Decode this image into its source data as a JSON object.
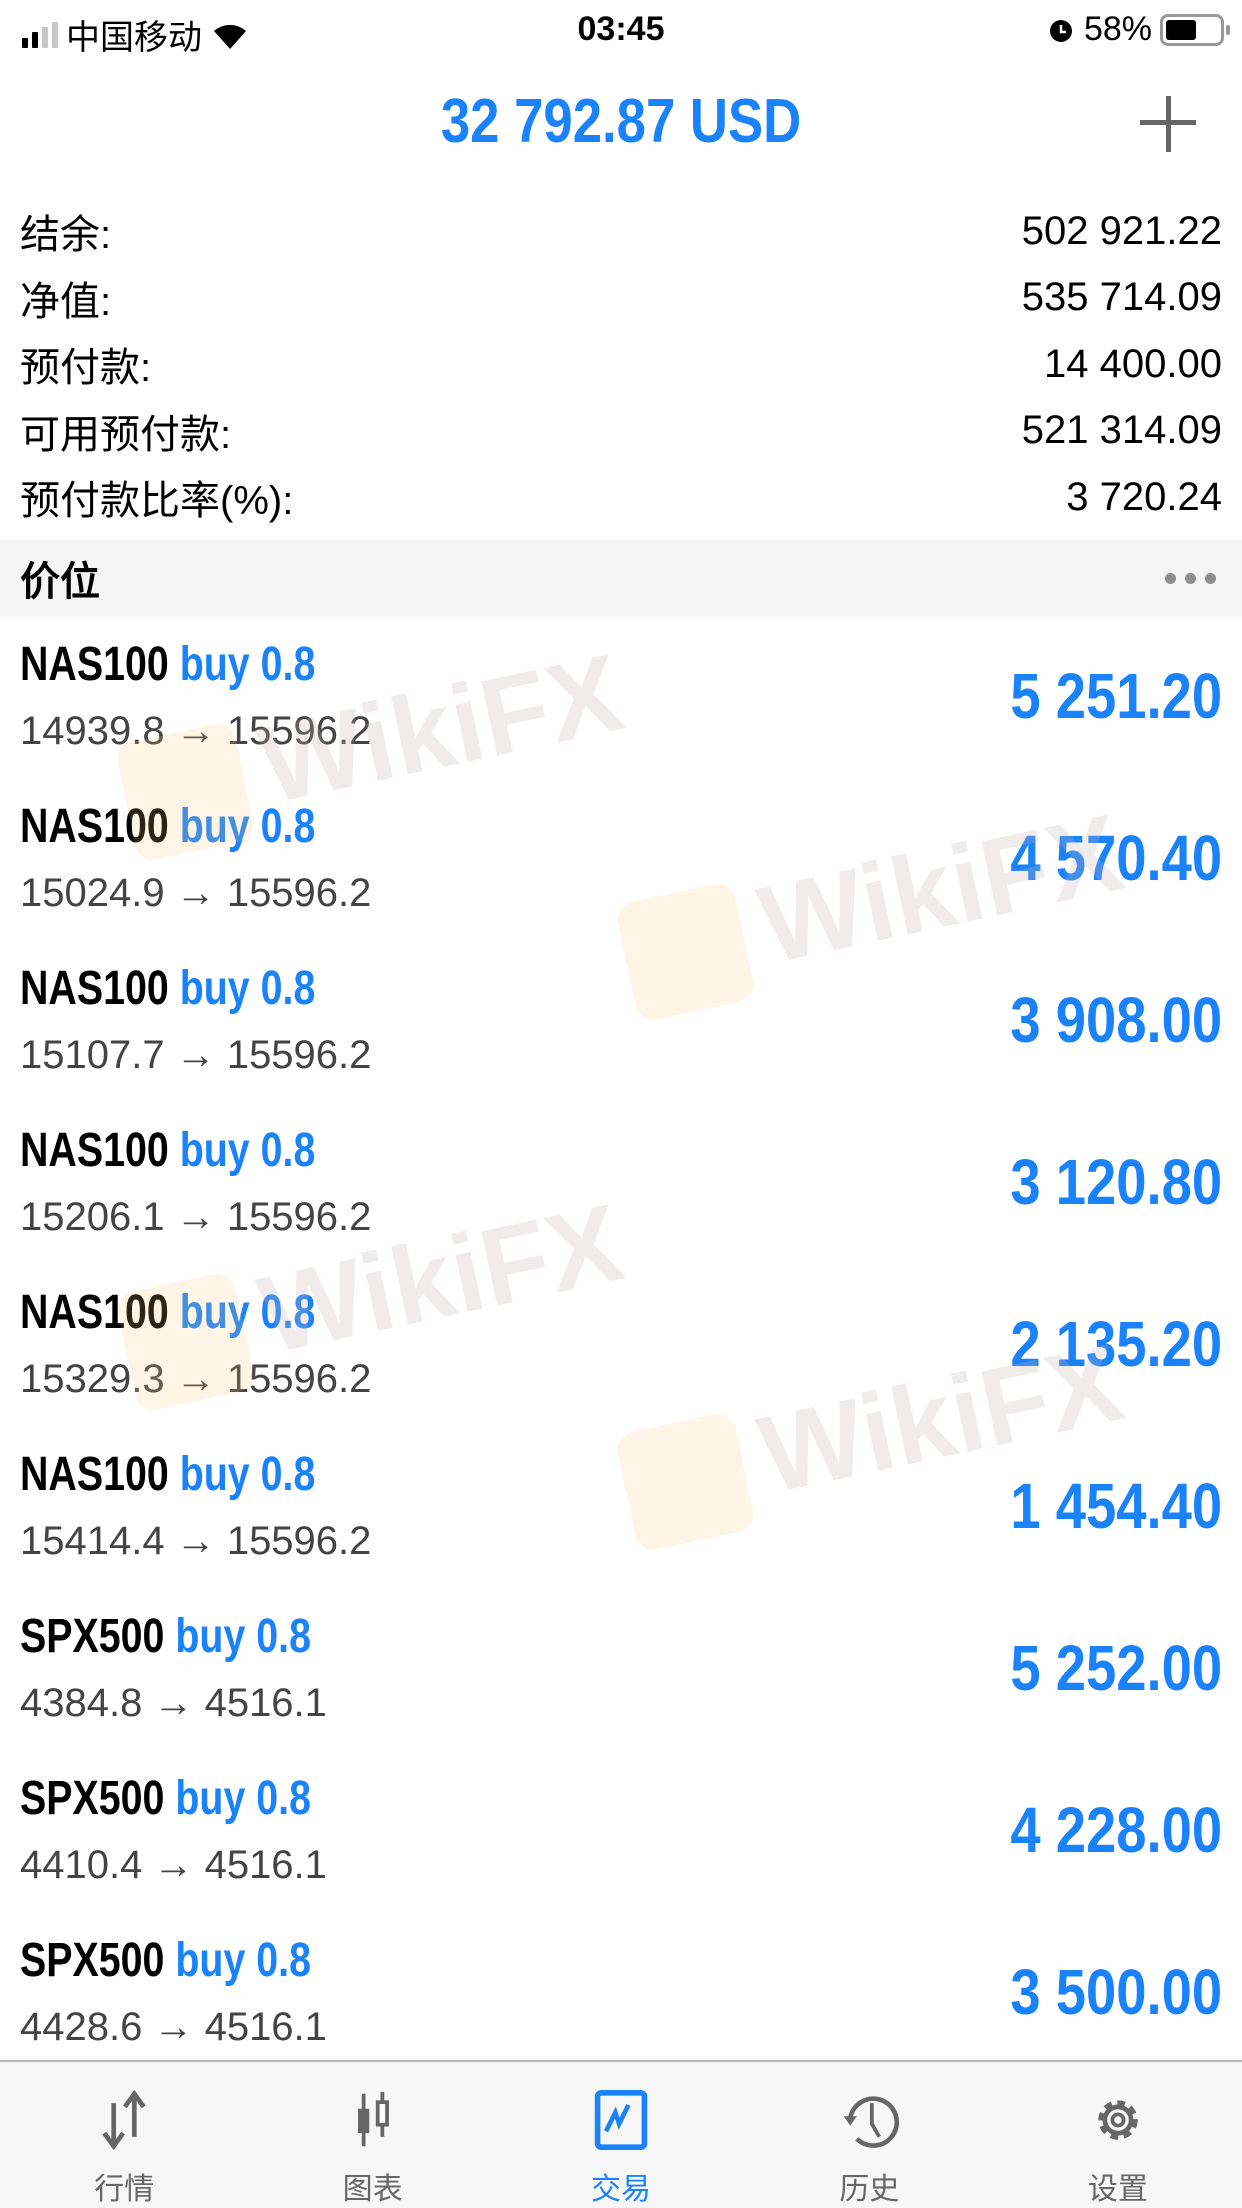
{
  "status_bar": {
    "carrier": "中国移动",
    "time": "03:45",
    "battery": "58%",
    "battery_level": 0.58
  },
  "header": {
    "title": "32 792.87 USD",
    "add_icon": "plus-icon"
  },
  "summary": [
    {
      "label": "结余:",
      "value": "502 921.22"
    },
    {
      "label": "净值:",
      "value": "535 714.09"
    },
    {
      "label": "预付款:",
      "value": "14 400.00"
    },
    {
      "label": "可用预付款:",
      "value": "521 314.09"
    },
    {
      "label": "预付款比率(%):",
      "value": "3 720.24"
    }
  ],
  "section": {
    "title": "价位",
    "more_icon": "ellipsis-icon"
  },
  "positions": [
    {
      "symbol": "NAS100",
      "side": "buy 0.8",
      "prices": "14939.8 → 15596.2",
      "profit": "5 251.20"
    },
    {
      "symbol": "NAS100",
      "side": "buy 0.8",
      "prices": "15024.9 → 15596.2",
      "profit": "4 570.40"
    },
    {
      "symbol": "NAS100",
      "side": "buy 0.8",
      "prices": "15107.7 → 15596.2",
      "profit": "3 908.00"
    },
    {
      "symbol": "NAS100",
      "side": "buy 0.8",
      "prices": "15206.1 → 15596.2",
      "profit": "3 120.80"
    },
    {
      "symbol": "NAS100",
      "side": "buy 0.8",
      "prices": "15329.3 → 15596.2",
      "profit": "2 135.20"
    },
    {
      "symbol": "NAS100",
      "side": "buy 0.8",
      "prices": "15414.4 → 15596.2",
      "profit": "1 454.40"
    },
    {
      "symbol": "SPX500",
      "side": "buy 0.8",
      "prices": "4384.8 → 4516.1",
      "profit": "5 252.00"
    },
    {
      "symbol": "SPX500",
      "side": "buy 0.8",
      "prices": "4410.4 → 4516.1",
      "profit": "4 228.00"
    },
    {
      "symbol": "SPX500",
      "side": "buy 0.8",
      "prices": "4428.6 → 4516.1",
      "profit": "3 500.00"
    }
  ],
  "watermark": "WikiFX",
  "tabs": [
    {
      "label": "行情",
      "icon": "arrows-updown-icon"
    },
    {
      "label": "图表",
      "icon": "candlestick-icon"
    },
    {
      "label": "交易",
      "icon": "trade-chart-icon",
      "active": true
    },
    {
      "label": "历史",
      "icon": "history-icon"
    },
    {
      "label": "设置",
      "icon": "gear-icon"
    }
  ],
  "colors": {
    "accent": "#1a82fb",
    "inactive": "#666666"
  }
}
